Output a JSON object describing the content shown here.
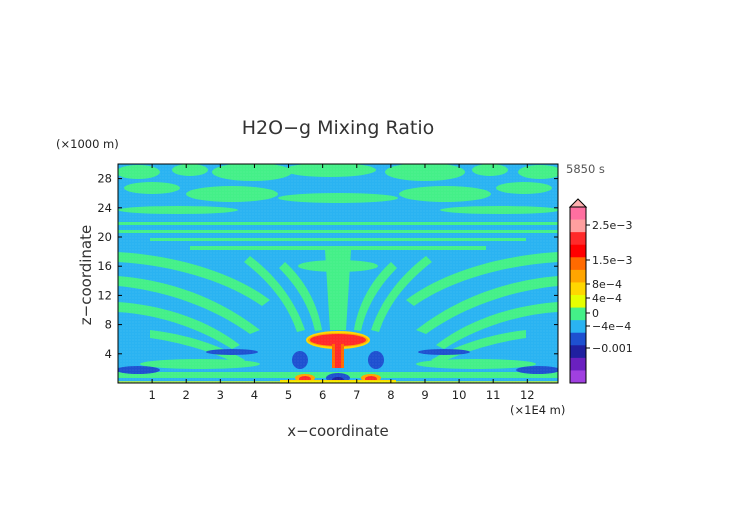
{
  "chart_data": {
    "type": "heatmap",
    "title": "H2O−g Mixing Ratio",
    "xlabel": "x−coordinate",
    "ylabel": "z−coordinate",
    "x_unit": "(×1E4 m)",
    "y_unit": "(×1000 m)",
    "time_label": "5850 s",
    "xlim": [
      0,
      12.9
    ],
    "ylim": [
      0,
      30
    ],
    "x_ticks": [
      "1",
      "2",
      "3",
      "4",
      "5",
      "6",
      "7",
      "8",
      "9",
      "10",
      "11",
      "12"
    ],
    "y_ticks": [
      "4",
      "8",
      "12",
      "16",
      "20",
      "24",
      "28"
    ],
    "grid": false,
    "colorbar": {
      "position": "right",
      "tick_labels": [
        "2.5e−3",
        "1.5e−3",
        "8e−4",
        "4e−4",
        "0",
        "−4e−4",
        "−0.001"
      ],
      "tick_values": [
        0.0025,
        0.0015,
        0.0008,
        0.0004,
        0,
        -0.0004,
        -0.001
      ],
      "colors": [
        "#ff6fa0",
        "#ff9f9f",
        "#ff2a2a",
        "#ff0000",
        "#ff6a00",
        "#ffa500",
        "#ffd700",
        "#e6ff00",
        "#44f088",
        "#2ab3f2",
        "#1e50d0",
        "#2020a0",
        "#6a20c0",
        "#a040e0"
      ]
    }
  }
}
